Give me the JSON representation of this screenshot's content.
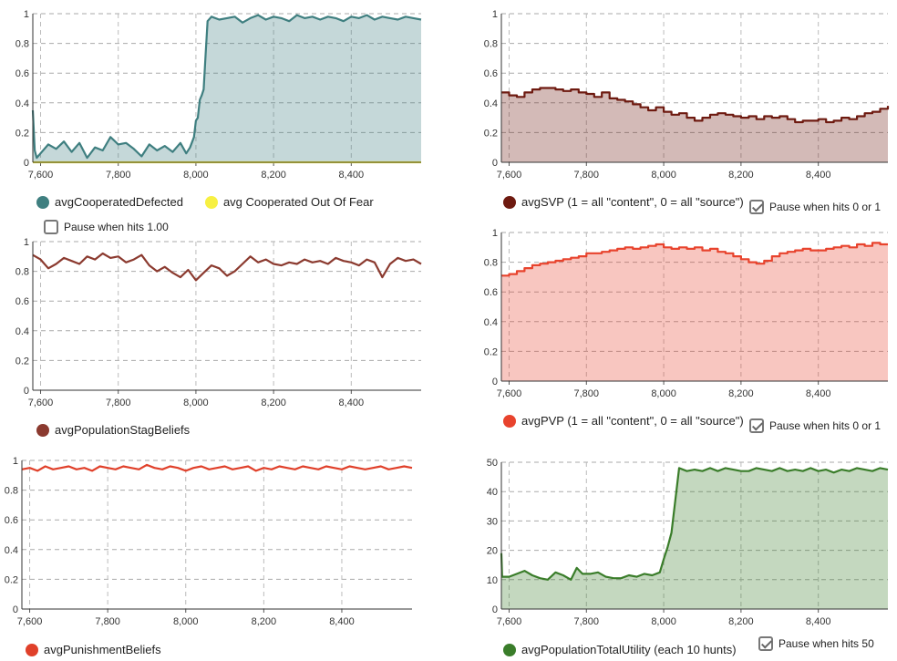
{
  "chart_data": [
    {
      "id": "c1",
      "type": "area",
      "ylim": [
        0,
        1
      ],
      "xlim": [
        7580,
        8580
      ],
      "yticks": [
        0,
        0.2,
        0.4,
        0.6,
        0.8,
        1
      ],
      "ytick_labels": [
        "0",
        "0.2",
        "0.4",
        "0.6",
        "0.8",
        "1"
      ],
      "xticks": [
        7600,
        7800,
        8000,
        8200,
        8400
      ],
      "xtick_labels": [
        "7,600",
        "7,800",
        "8,000",
        "8,200",
        "8,400"
      ],
      "grid": true,
      "legend_placement": "bottom",
      "series": [
        {
          "name": "avgCooperatedDefected",
          "color": "#3f7f80",
          "fill": true,
          "x": [
            7580,
            7585,
            7590,
            7600,
            7620,
            7640,
            7660,
            7680,
            7700,
            7720,
            7740,
            7760,
            7780,
            7800,
            7820,
            7840,
            7860,
            7880,
            7900,
            7920,
            7940,
            7960,
            7975,
            7985,
            7995,
            8000,
            8005,
            8010,
            8015,
            8020,
            8025,
            8030,
            8040,
            8060,
            8080,
            8100,
            8120,
            8140,
            8160,
            8180,
            8200,
            8220,
            8240,
            8260,
            8280,
            8300,
            8320,
            8340,
            8360,
            8380,
            8400,
            8420,
            8440,
            8460,
            8480,
            8500,
            8520,
            8540,
            8560,
            8580
          ],
          "y": [
            0.35,
            0.08,
            0.03,
            0.06,
            0.12,
            0.09,
            0.14,
            0.07,
            0.13,
            0.03,
            0.1,
            0.08,
            0.17,
            0.12,
            0.13,
            0.09,
            0.04,
            0.12,
            0.08,
            0.11,
            0.07,
            0.13,
            0.06,
            0.1,
            0.17,
            0.28,
            0.3,
            0.42,
            0.45,
            0.49,
            0.73,
            0.95,
            0.98,
            0.96,
            0.97,
            0.98,
            0.94,
            0.97,
            0.99,
            0.96,
            0.98,
            0.97,
            0.95,
            0.99,
            0.97,
            0.98,
            0.96,
            0.98,
            0.97,
            0.95,
            0.98,
            0.97,
            0.99,
            0.96,
            0.98,
            0.97,
            0.96,
            0.98,
            0.97,
            0.96
          ]
        },
        {
          "name": "avg Cooperated Out Of Fear",
          "color": "#f7f042",
          "fill": false,
          "x": [
            7580,
            8580
          ],
          "y": [
            0,
            0
          ]
        }
      ],
      "pause_label": "Pause when hits 1.00",
      "pause_checked": false
    },
    {
      "id": "c2",
      "type": "area",
      "ylim": [
        0,
        1
      ],
      "xlim": [
        7580,
        8580
      ],
      "yticks": [
        0,
        0.2,
        0.4,
        0.6,
        0.8,
        1
      ],
      "ytick_labels": [
        "0",
        "0.2",
        "0.4",
        "0.6",
        "0.8",
        "1"
      ],
      "xticks": [
        7600,
        7800,
        8000,
        8200,
        8400
      ],
      "xtick_labels": [
        "7,600",
        "7,800",
        "8,000",
        "8,200",
        "8,400"
      ],
      "grid": true,
      "legend_placement": "bottom",
      "step": true,
      "series": [
        {
          "name": "avgSVP (1 = all \"content\", 0 = all \"source\")",
          "color": "#6e1a10",
          "fill": true,
          "x": [
            7580,
            7600,
            7620,
            7640,
            7660,
            7680,
            7700,
            7720,
            7740,
            7760,
            7780,
            7800,
            7820,
            7840,
            7860,
            7880,
            7900,
            7920,
            7940,
            7960,
            7980,
            8000,
            8020,
            8040,
            8060,
            8080,
            8100,
            8120,
            8140,
            8160,
            8180,
            8200,
            8220,
            8240,
            8260,
            8280,
            8300,
            8320,
            8340,
            8360,
            8380,
            8400,
            8420,
            8440,
            8460,
            8480,
            8500,
            8520,
            8540,
            8560,
            8580
          ],
          "y": [
            0.47,
            0.45,
            0.44,
            0.47,
            0.49,
            0.5,
            0.5,
            0.49,
            0.48,
            0.49,
            0.47,
            0.46,
            0.44,
            0.47,
            0.43,
            0.42,
            0.41,
            0.39,
            0.37,
            0.35,
            0.37,
            0.34,
            0.32,
            0.33,
            0.3,
            0.28,
            0.3,
            0.32,
            0.33,
            0.32,
            0.31,
            0.3,
            0.31,
            0.29,
            0.31,
            0.3,
            0.31,
            0.29,
            0.27,
            0.28,
            0.28,
            0.29,
            0.27,
            0.28,
            0.3,
            0.29,
            0.31,
            0.33,
            0.34,
            0.36,
            0.38
          ]
        }
      ],
      "pause_label": "Pause when hits 0 or 1",
      "pause_checked": true
    },
    {
      "id": "c3",
      "type": "line",
      "ylim": [
        0,
        1
      ],
      "xlim": [
        7580,
        8580
      ],
      "yticks": [
        0,
        0.2,
        0.4,
        0.6,
        0.8,
        1
      ],
      "ytick_labels": [
        "0",
        "0.2",
        "0.4",
        "0.6",
        "0.8",
        "1"
      ],
      "xticks": [
        7600,
        7800,
        8000,
        8200,
        8400
      ],
      "xtick_labels": [
        "7,600",
        "7,800",
        "8,000",
        "8,200",
        "8,400"
      ],
      "grid": true,
      "legend_placement": "bottom",
      "series": [
        {
          "name": "avgPopulationStagBeliefs",
          "color": "#8b3a2f",
          "fill": false,
          "x": [
            7580,
            7600,
            7620,
            7640,
            7660,
            7680,
            7700,
            7720,
            7740,
            7760,
            7780,
            7800,
            7820,
            7840,
            7860,
            7880,
            7900,
            7920,
            7940,
            7960,
            7980,
            8000,
            8020,
            8040,
            8060,
            8080,
            8100,
            8120,
            8140,
            8160,
            8180,
            8200,
            8220,
            8240,
            8260,
            8280,
            8300,
            8320,
            8340,
            8360,
            8380,
            8400,
            8420,
            8440,
            8460,
            8480,
            8500,
            8520,
            8540,
            8560,
            8580
          ],
          "y": [
            0.91,
            0.88,
            0.82,
            0.85,
            0.89,
            0.87,
            0.85,
            0.9,
            0.88,
            0.92,
            0.89,
            0.9,
            0.86,
            0.88,
            0.91,
            0.84,
            0.8,
            0.83,
            0.79,
            0.76,
            0.81,
            0.74,
            0.79,
            0.84,
            0.82,
            0.77,
            0.8,
            0.85,
            0.9,
            0.86,
            0.88,
            0.85,
            0.84,
            0.86,
            0.85,
            0.88,
            0.86,
            0.87,
            0.85,
            0.89,
            0.87,
            0.86,
            0.84,
            0.88,
            0.86,
            0.76,
            0.85,
            0.89,
            0.87,
            0.88,
            0.85
          ]
        }
      ]
    },
    {
      "id": "c4",
      "type": "area",
      "ylim": [
        0,
        1
      ],
      "xlim": [
        7580,
        8580
      ],
      "yticks": [
        0,
        0.2,
        0.4,
        0.6,
        0.8,
        1
      ],
      "ytick_labels": [
        "0",
        "0.2",
        "0.4",
        "0.6",
        "0.8",
        "1"
      ],
      "xticks": [
        7600,
        7800,
        8000,
        8200,
        8400
      ],
      "xtick_labels": [
        "7,600",
        "7,800",
        "8,000",
        "8,200",
        "8,400"
      ],
      "grid": true,
      "legend_placement": "bottom",
      "step": true,
      "series": [
        {
          "name": "avgPVP (1 = all \"content\", 0 = all \"source\")",
          "color": "#e8432d",
          "fill": true,
          "x": [
            7580,
            7600,
            7620,
            7640,
            7660,
            7680,
            7700,
            7720,
            7740,
            7760,
            7780,
            7800,
            7820,
            7840,
            7860,
            7880,
            7900,
            7920,
            7940,
            7960,
            7980,
            8000,
            8020,
            8040,
            8060,
            8080,
            8100,
            8120,
            8140,
            8160,
            8180,
            8200,
            8220,
            8240,
            8260,
            8280,
            8300,
            8320,
            8340,
            8360,
            8380,
            8400,
            8420,
            8440,
            8460,
            8480,
            8500,
            8520,
            8540,
            8560,
            8580
          ],
          "y": [
            0.71,
            0.72,
            0.74,
            0.76,
            0.78,
            0.79,
            0.8,
            0.81,
            0.82,
            0.83,
            0.84,
            0.86,
            0.86,
            0.87,
            0.88,
            0.89,
            0.9,
            0.89,
            0.9,
            0.91,
            0.92,
            0.9,
            0.89,
            0.9,
            0.89,
            0.9,
            0.88,
            0.89,
            0.87,
            0.86,
            0.84,
            0.82,
            0.8,
            0.79,
            0.81,
            0.84,
            0.86,
            0.87,
            0.88,
            0.89,
            0.88,
            0.88,
            0.89,
            0.9,
            0.91,
            0.9,
            0.92,
            0.91,
            0.93,
            0.92,
            0.92
          ]
        }
      ],
      "pause_label": "Pause when hits 0 or 1",
      "pause_checked": true
    },
    {
      "id": "c5",
      "type": "line",
      "ylim": [
        0,
        1
      ],
      "xlim": [
        7580,
        8580
      ],
      "yticks": [
        0,
        0.2,
        0.4,
        0.6,
        0.8,
        1
      ],
      "ytick_labels": [
        "0",
        "0.2",
        "0.4",
        "0.6",
        "0.8",
        "1"
      ],
      "xticks": [
        7600,
        7800,
        8000,
        8200,
        8400
      ],
      "xtick_labels": [
        "7,600",
        "7,800",
        "8,000",
        "8,200",
        "8,400"
      ],
      "grid": true,
      "legend_placement": "bottom",
      "series": [
        {
          "name": "avgPunishmentBeliefs",
          "color": "#e0402a",
          "fill": false,
          "x": [
            7580,
            7600,
            7620,
            7640,
            7660,
            7680,
            7700,
            7720,
            7740,
            7760,
            7780,
            7800,
            7820,
            7840,
            7860,
            7880,
            7900,
            7920,
            7940,
            7960,
            7980,
            8000,
            8020,
            8040,
            8060,
            8080,
            8100,
            8120,
            8140,
            8160,
            8180,
            8200,
            8220,
            8240,
            8260,
            8280,
            8300,
            8320,
            8340,
            8360,
            8380,
            8400,
            8420,
            8440,
            8460,
            8480,
            8500,
            8520,
            8540,
            8560,
            8580
          ],
          "y": [
            0.94,
            0.95,
            0.93,
            0.96,
            0.94,
            0.95,
            0.96,
            0.94,
            0.95,
            0.93,
            0.96,
            0.95,
            0.94,
            0.96,
            0.95,
            0.94,
            0.97,
            0.95,
            0.94,
            0.96,
            0.95,
            0.93,
            0.95,
            0.96,
            0.94,
            0.95,
            0.96,
            0.94,
            0.95,
            0.96,
            0.93,
            0.95,
            0.94,
            0.96,
            0.95,
            0.94,
            0.96,
            0.95,
            0.94,
            0.96,
            0.95,
            0.94,
            0.96,
            0.95,
            0.94,
            0.95,
            0.96,
            0.94,
            0.95,
            0.96,
            0.95
          ]
        }
      ]
    },
    {
      "id": "c6",
      "type": "area",
      "ylim": [
        0,
        50
      ],
      "xlim": [
        7580,
        8580
      ],
      "yticks": [
        0,
        10,
        20,
        30,
        40,
        50
      ],
      "ytick_labels": [
        "0",
        "10",
        "20",
        "30",
        "40",
        "50"
      ],
      "xticks": [
        7600,
        7800,
        8000,
        8200,
        8400
      ],
      "xtick_labels": [
        "7,600",
        "7,800",
        "8,000",
        "8,200",
        "8,400"
      ],
      "grid": true,
      "legend_placement": "bottom",
      "series": [
        {
          "name": "avgPopulationTotalUtility (each 10 hunts)",
          "color": "#3a7d2a",
          "fill": true,
          "x": [
            7580,
            7582,
            7590,
            7600,
            7620,
            7640,
            7660,
            7680,
            7700,
            7720,
            7740,
            7760,
            7775,
            7790,
            7810,
            7830,
            7850,
            7870,
            7890,
            7910,
            7930,
            7950,
            7970,
            7990,
            8000,
            8010,
            8020,
            8040,
            8060,
            8080,
            8100,
            8120,
            8140,
            8160,
            8180,
            8200,
            8220,
            8240,
            8260,
            8280,
            8300,
            8320,
            8340,
            8360,
            8380,
            8400,
            8420,
            8440,
            8460,
            8480,
            8500,
            8520,
            8540,
            8560,
            8580
          ],
          "y": [
            19,
            11,
            11,
            11,
            12,
            13,
            11.5,
            10.5,
            10,
            12.5,
            11.5,
            10,
            14,
            12,
            12,
            12.5,
            11,
            10.5,
            10.5,
            11.5,
            11,
            12,
            11.5,
            12.5,
            17,
            21,
            26,
            48,
            47,
            47.5,
            47,
            48,
            47,
            48,
            47.5,
            47,
            47,
            48,
            47.5,
            47,
            48,
            47,
            47.5,
            47,
            48,
            47,
            47.5,
            46.5,
            47.5,
            47,
            48,
            47.5,
            47,
            48,
            47.5
          ]
        }
      ],
      "pause_label": "Pause when hits 50",
      "pause_checked": true
    }
  ]
}
